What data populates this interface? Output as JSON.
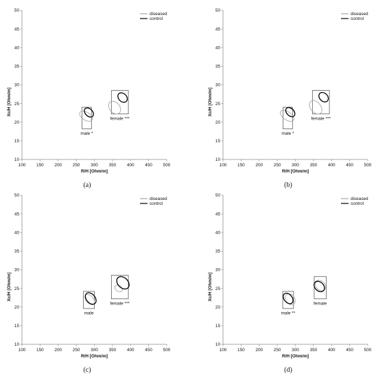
{
  "colors": {
    "diseased": "#a6a6a6",
    "control": "#000000",
    "axis": "#8c8c8c",
    "box": "#444444"
  },
  "chart_data": [
    {
      "type": "scatter",
      "panel_label": "(a)",
      "xlabel": "R/H  [Ohm/m]",
      "ylabel": "Xc/H  [Ohm/m]",
      "xlim": [
        100,
        500
      ],
      "ylim": [
        10,
        50
      ],
      "xticks": [
        100,
        150,
        200,
        250,
        300,
        350,
        400,
        450,
        500
      ],
      "yticks": [
        10,
        15,
        20,
        25,
        30,
        35,
        40,
        45,
        50
      ],
      "legend": [
        "diseased",
        "control"
      ],
      "legend_position": "top-right",
      "groups": [
        {
          "label": "male *",
          "box": {
            "x0": 266,
            "x1": 292,
            "y0": 18.2,
            "y1": 24.0
          },
          "diseased": {
            "cx": 277,
            "cy": 21.6,
            "rx": 11,
            "ry": 1.2,
            "angle": 58
          },
          "control": {
            "cx": 285,
            "cy": 22.6,
            "rx": 10,
            "ry": 0.9,
            "angle": 45
          }
        },
        {
          "label": "female ***",
          "box": {
            "x0": 347,
            "x1": 394,
            "y0": 22.2,
            "y1": 28.5
          },
          "diseased": {
            "cx": 356,
            "cy": 23.9,
            "rx": 14,
            "ry": 1.2,
            "angle": 40
          },
          "control": {
            "cx": 378,
            "cy": 26.6,
            "rx": 11,
            "ry": 0.9,
            "angle": 45
          }
        }
      ]
    },
    {
      "type": "scatter",
      "panel_label": "(b)",
      "xlabel": "R/H  [Ohm/m]",
      "ylabel": "Xc/H  [Ohm/m]",
      "xlim": [
        100,
        500
      ],
      "ylim": [
        10,
        50
      ],
      "xticks": [
        100,
        150,
        200,
        250,
        300,
        350,
        400,
        450,
        500
      ],
      "yticks": [
        10,
        15,
        20,
        25,
        30,
        35,
        40,
        45,
        50
      ],
      "legend": [
        "diseased",
        "control"
      ],
      "legend_position": "top-right",
      "groups": [
        {
          "label": "male *",
          "box": {
            "x0": 266,
            "x1": 292,
            "y0": 18.2,
            "y1": 24.0
          },
          "diseased": {
            "cx": 277,
            "cy": 21.7,
            "rx": 11,
            "ry": 1.3,
            "angle": 55
          },
          "control": {
            "cx": 286,
            "cy": 22.7,
            "rx": 10,
            "ry": 0.9,
            "angle": 45
          }
        },
        {
          "label": "female ***",
          "box": {
            "x0": 347,
            "x1": 394,
            "y0": 22.2,
            "y1": 28.5
          },
          "diseased": {
            "cx": 356,
            "cy": 24.0,
            "rx": 14,
            "ry": 1.3,
            "angle": 40
          },
          "control": {
            "cx": 378,
            "cy": 26.7,
            "rx": 11,
            "ry": 0.9,
            "angle": 45
          }
        }
      ]
    },
    {
      "type": "scatter",
      "panel_label": "(c)",
      "xlabel": "R/H  [Ohm/m]",
      "ylabel": "Xc/H  [Ohm/m]",
      "xlim": [
        100,
        500
      ],
      "ylim": [
        10,
        50
      ],
      "xticks": [
        100,
        150,
        200,
        250,
        300,
        350,
        400,
        450,
        500
      ],
      "yticks": [
        10,
        15,
        20,
        25,
        30,
        35,
        40,
        45,
        50
      ],
      "legend": [
        "diseased",
        "control"
      ],
      "legend_position": "top-right",
      "groups": [
        {
          "label": "male",
          "box": {
            "x0": 270,
            "x1": 300,
            "y0": 19.6,
            "y1": 24.2
          },
          "diseased": {
            "cx": 287,
            "cy": 22.0,
            "rx": 10,
            "ry": 1.0,
            "angle": 40
          },
          "control": {
            "cx": 290,
            "cy": 22.3,
            "rx": 12,
            "ry": 1.1,
            "angle": 40
          }
        },
        {
          "label": "female ***",
          "box": {
            "x0": 347,
            "x1": 394,
            "y0": 22.2,
            "y1": 28.5
          },
          "diseased": {
            "cx": 367,
            "cy": 25.0,
            "rx": 8,
            "ry": 0.7,
            "angle": 55
          },
          "control": {
            "cx": 379,
            "cy": 26.5,
            "rx": 14,
            "ry": 1.2,
            "angle": 45
          }
        }
      ]
    },
    {
      "type": "scatter",
      "panel_label": "(d)",
      "xlabel": "R/H  [Ohm/m]",
      "ylabel": "Xc/H  [Ohm/m]",
      "xlim": [
        100,
        500
      ],
      "ylim": [
        10,
        50
      ],
      "xticks": [
        100,
        150,
        200,
        250,
        300,
        350,
        400,
        450,
        500
      ],
      "yticks": [
        10,
        15,
        20,
        25,
        30,
        35,
        40,
        45,
        50
      ],
      "legend": [
        "diseased",
        "control"
      ],
      "legend_position": "top-right",
      "groups": [
        {
          "label": "male **",
          "box": {
            "x0": 265,
            "x1": 295,
            "y0": 19.6,
            "y1": 24.2
          },
          "diseased": {
            "cx": 286,
            "cy": 22.1,
            "rx": 12,
            "ry": 1.0,
            "angle": 35
          },
          "control": {
            "cx": 280,
            "cy": 22.3,
            "rx": 11,
            "ry": 1.0,
            "angle": 40
          }
        },
        {
          "label": "female",
          "box": {
            "x0": 352,
            "x1": 385,
            "y0": 22.2,
            "y1": 28.2
          },
          "diseased": {
            "cx": 369,
            "cy": 25.8,
            "rx": 12,
            "ry": 1.0,
            "angle": 45
          },
          "control": {
            "cx": 366,
            "cy": 25.5,
            "rx": 12,
            "ry": 1.0,
            "angle": 45
          }
        }
      ]
    }
  ]
}
